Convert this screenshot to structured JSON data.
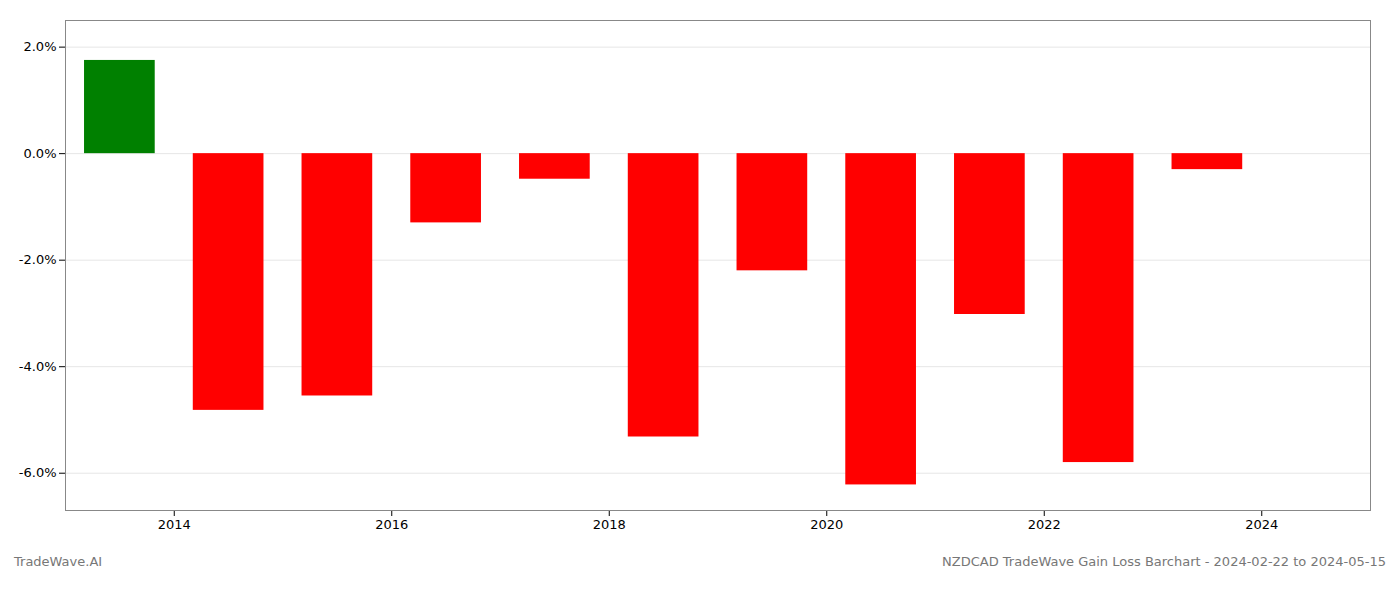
{
  "chart_data": {
    "type": "bar",
    "title": "NZDCAD TradeWave Gain Loss Barchart - 2024-02-22 to 2024-05-15",
    "annotations": [
      "TradeWave.AI"
    ],
    "x": [
      2013.5,
      2014.5,
      2015.5,
      2016.5,
      2017.5,
      2018.5,
      2019.5,
      2020.5,
      2021.5,
      2022.5,
      2023.5
    ],
    "values": [
      1.75,
      -4.82,
      -4.55,
      -1.3,
      -0.48,
      -5.32,
      -2.2,
      -6.22,
      -3.02,
      -5.8,
      -0.3
    ],
    "colors": [
      "#008000",
      "#ff0000",
      "#ff0000",
      "#ff0000",
      "#ff0000",
      "#ff0000",
      "#ff0000",
      "#ff0000",
      "#ff0000",
      "#ff0000",
      "#ff0000"
    ],
    "xlim": [
      2013.0,
      2025.0
    ],
    "xticks": [
      2014,
      2016,
      2018,
      2020,
      2022,
      2024
    ],
    "ylim": [
      -6.7,
      2.5
    ],
    "yticks": [
      {
        "value": -6.0,
        "label": "-6.0%"
      },
      {
        "value": -4.0,
        "label": "-4.0%"
      },
      {
        "value": -2.0,
        "label": "-2.0%"
      },
      {
        "value": 0.0,
        "label": "0.0%"
      },
      {
        "value": 2.0,
        "label": "2.0%"
      }
    ],
    "grid": true
  }
}
